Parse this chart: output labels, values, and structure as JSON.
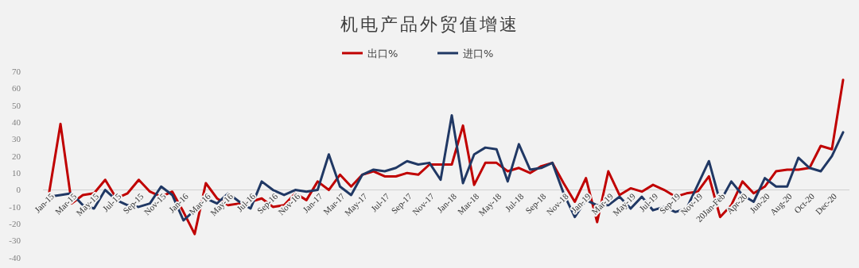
{
  "chart_data": {
    "type": "line",
    "title": "机电产品外贸值增速",
    "legend": "top",
    "line_style": "solid",
    "categories": [
      "Jan-15",
      null,
      "Mar-15",
      null,
      "May-15",
      null,
      "Jul-15",
      null,
      "Sep-15",
      null,
      "Nov-15",
      null,
      "Jan-16",
      null,
      "Mar-16",
      null,
      "May-16",
      null,
      "Jul-16",
      null,
      "Sep-16",
      null,
      "Nov-16",
      null,
      "Jan-17",
      null,
      "Mar-17",
      null,
      "May-17",
      null,
      "Jul-17",
      null,
      "Sep-17",
      null,
      "Nov-17",
      null,
      "Jan-18",
      null,
      "Mar-18",
      null,
      "May-18",
      null,
      "Jul-18",
      null,
      "Sep-18",
      null,
      "Nov-18",
      null,
      "Jan-19",
      null,
      "Mar-19",
      null,
      "May-19",
      null,
      "Jul-19",
      null,
      "Sep-19",
      null,
      "Nov-19",
      null,
      "20Jan-Feb",
      null,
      "Apr-20",
      null,
      "Jun-20",
      null,
      "Aug-20",
      null,
      "Oct-20",
      null,
      "Dec-20",
      null
    ],
    "ylim": [
      -40,
      70
    ],
    "yticks": [
      -40,
      -30,
      -20,
      -10,
      0,
      10,
      20,
      30,
      40,
      50,
      60,
      70
    ],
    "series": [
      {
        "name": "出口%",
        "color": "#c00000",
        "values": [
          -1,
          39,
          -8,
          -3,
          -2,
          6,
          -5,
          -2,
          6,
          -1,
          -4,
          -1,
          -13,
          -26,
          4,
          -5,
          -9,
          -8,
          -7,
          -5,
          -10,
          -9,
          -2,
          -6,
          5,
          0,
          9,
          2,
          9,
          11,
          8,
          8,
          10,
          9,
          15,
          15,
          15,
          38,
          3,
          16,
          16,
          11,
          13,
          10,
          14,
          16,
          4,
          -7,
          7,
          -19,
          11,
          -3,
          1,
          -1,
          3,
          0,
          -4,
          -2,
          -1,
          8,
          -16,
          -9,
          5,
          -2,
          2,
          11,
          12,
          12,
          13,
          26,
          24,
          65
        ]
      },
      {
        "name": "进口%",
        "color": "#203864",
        "values": [
          -4,
          -3,
          -2,
          -9,
          -11,
          0,
          -6,
          -9,
          -10,
          -8,
          2,
          -3,
          -18,
          -12,
          -5,
          -8,
          -2,
          -7,
          -11,
          5,
          0,
          -3,
          0,
          -1,
          0,
          21,
          2,
          -3,
          9,
          12,
          11,
          13,
          17,
          15,
          16,
          6,
          44,
          4,
          21,
          25,
          24,
          5,
          27,
          12,
          13,
          16,
          -2,
          -16,
          -6,
          -9,
          -9,
          -4,
          -11,
          -4,
          -12,
          -10,
          -13,
          -11,
          3,
          17,
          -7,
          5,
          -3,
          -7,
          7,
          2,
          2,
          19,
          13,
          11,
          20,
          34
        ]
      }
    ]
  }
}
